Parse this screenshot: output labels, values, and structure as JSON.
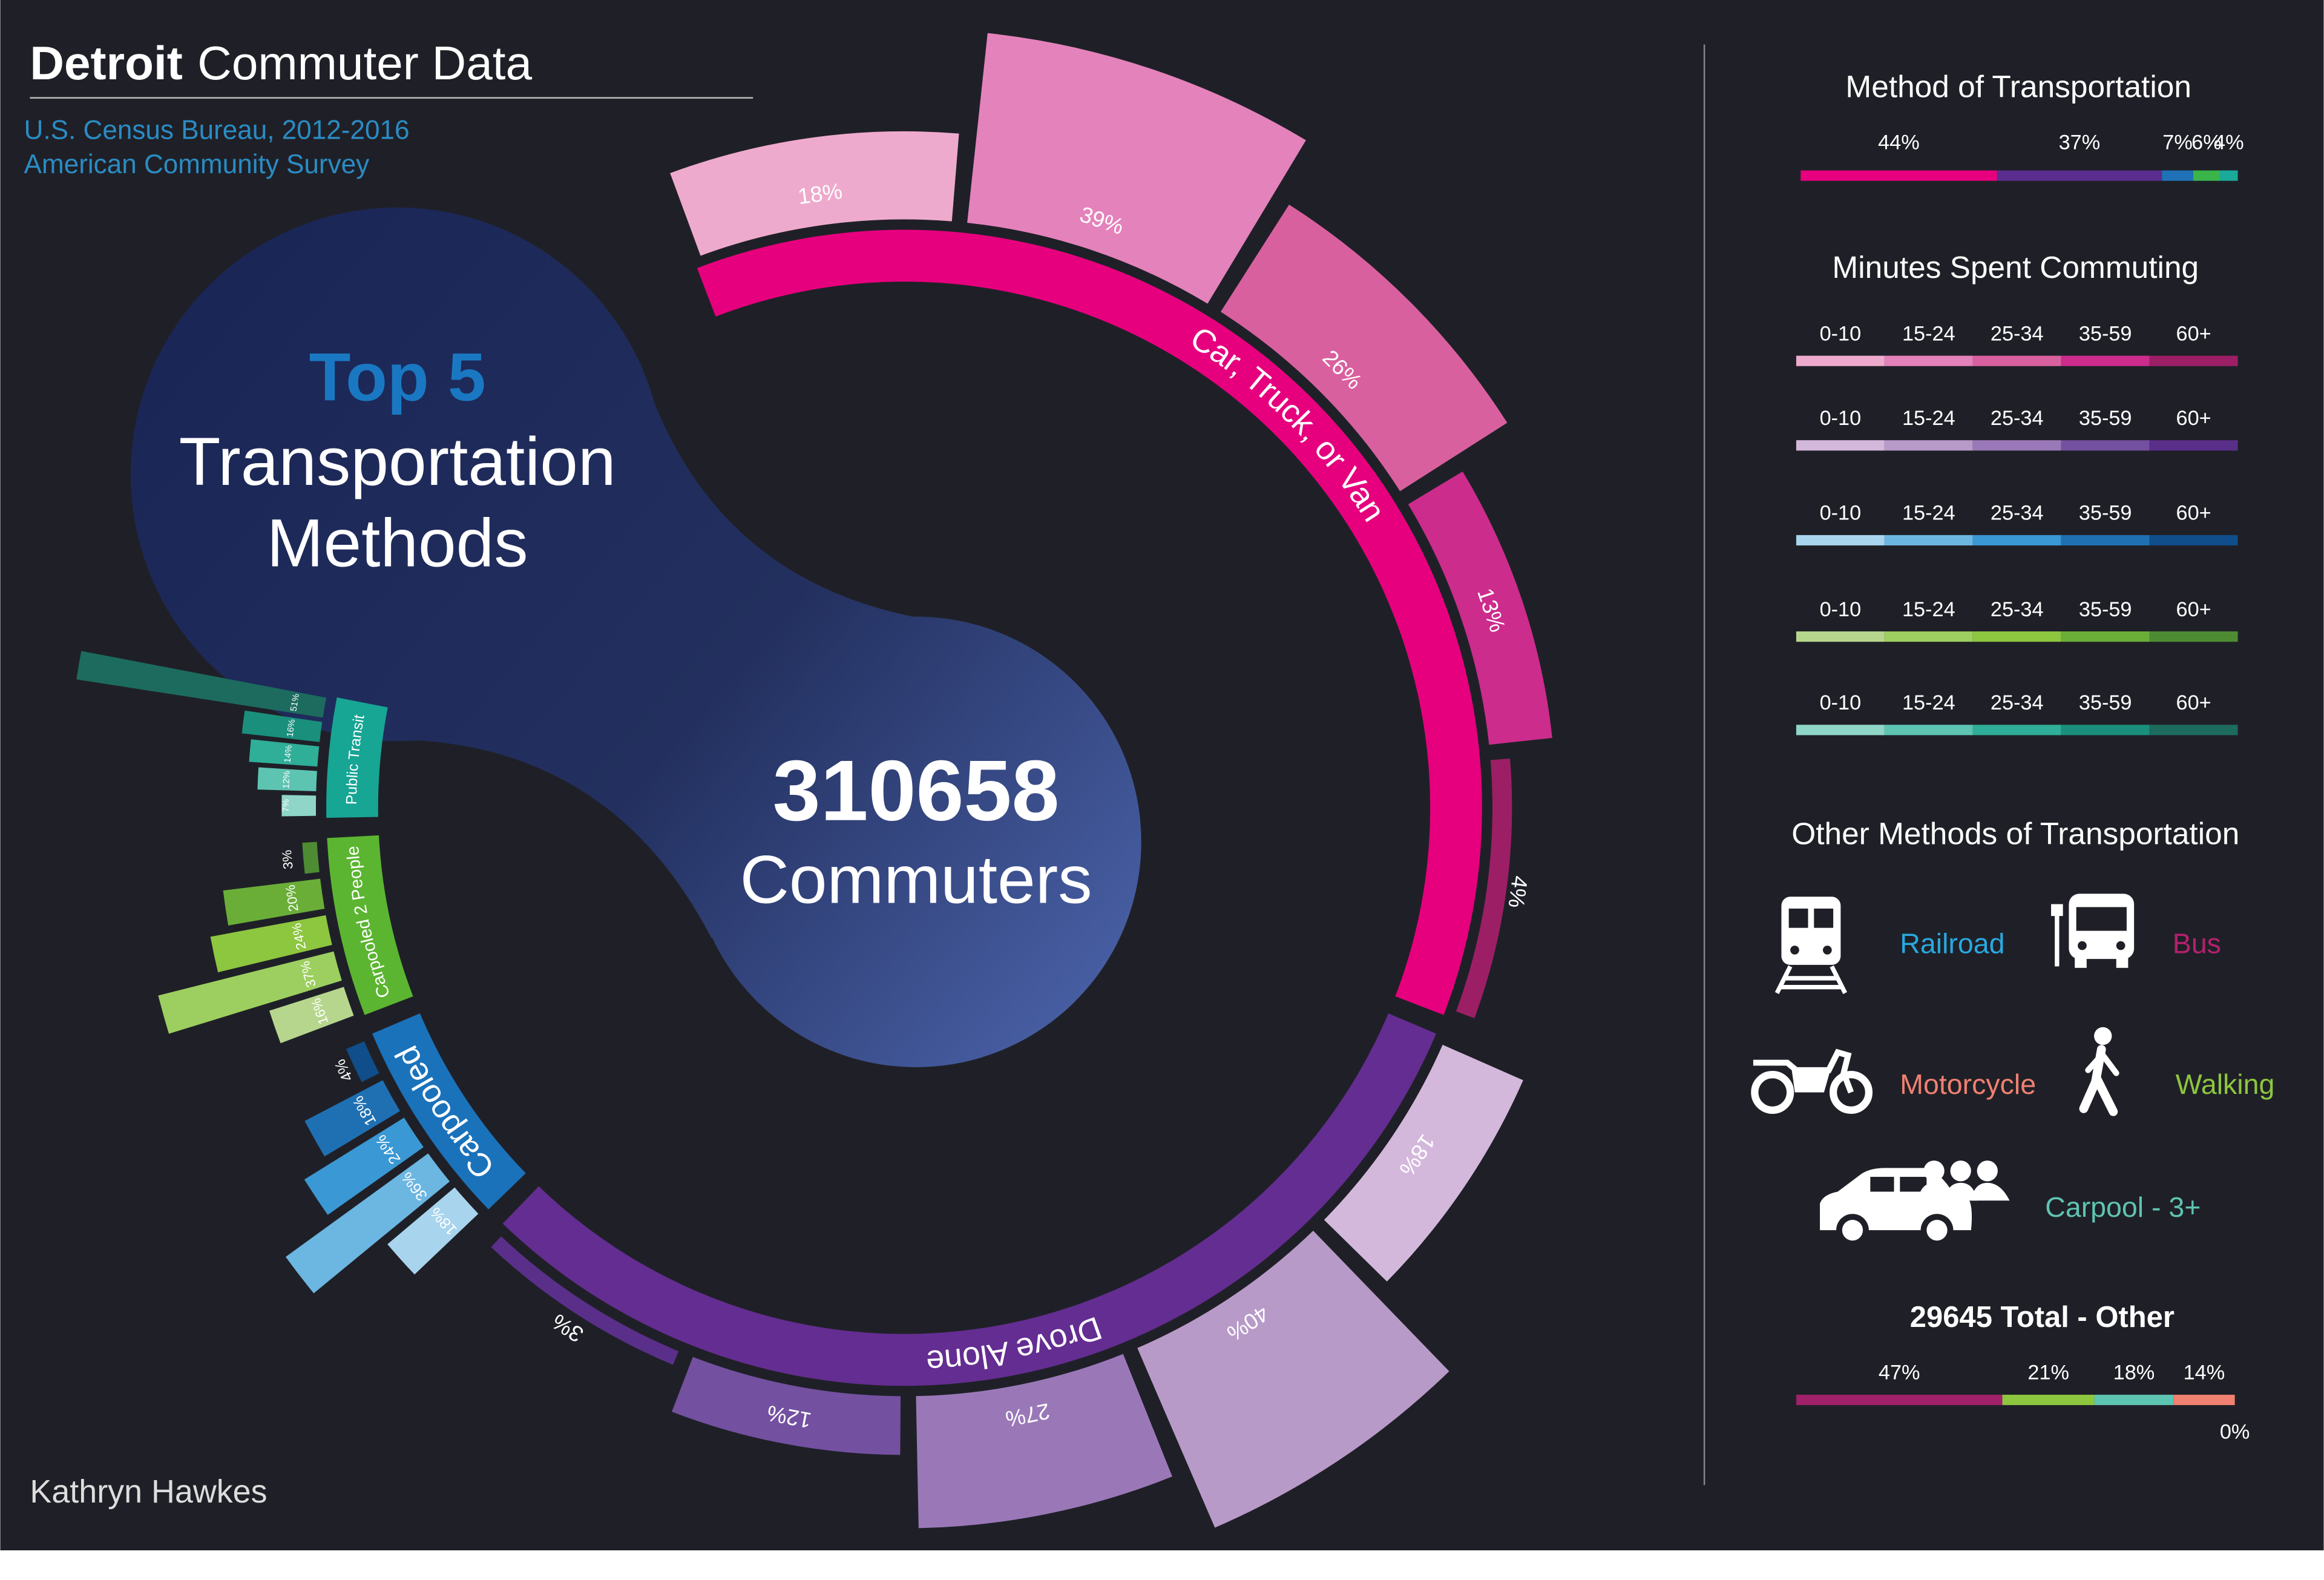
{
  "header": {
    "title_bold": "Detroit",
    "title_rest": "Commuter Data",
    "source_lines": [
      "U.S. Census Bureau, 2012-2016",
      "American Community Survey"
    ]
  },
  "center": {
    "heading": "Top 5",
    "lines": [
      "Transportation",
      "Methods"
    ],
    "total": 310658,
    "total_label": "Commuters"
  },
  "author": "Kathryn Hawkes",
  "minutes_legend": {
    "title": "Minutes Spent Commuting",
    "categories": [
      "0-10",
      "15-24",
      "25-34",
      "35-59",
      "60+"
    ],
    "palettes": [
      [
        "#eeaacc",
        "#e482bb",
        "#d9609f",
        "#cc2c8c",
        "#9c1f66"
      ],
      [
        "#d4b8dc",
        "#b89ac8",
        "#9a78b8",
        "#7350a0",
        "#5a2f8a"
      ],
      [
        "#a8d4ee",
        "#6cb6e2",
        "#3a98d4",
        "#1f70b3",
        "#0f4e8a"
      ],
      [
        "#b7d68d",
        "#9ccf5f",
        "#8dc63f",
        "#6aae38",
        "#4d8c33"
      ],
      [
        "#8fd6c8",
        "#5ec4b2",
        "#2fae98",
        "#1a8f7c",
        "#1c6b5e"
      ]
    ]
  },
  "other_methods": {
    "title": "Other Methods of Transportation",
    "items": [
      {
        "label": "Railroad",
        "color": "#29a8e0"
      },
      {
        "label": "Bus",
        "color": "#b5206e"
      },
      {
        "label": "Motorcycle",
        "color": "#f08070"
      },
      {
        "label": "Walking",
        "color": "#8dc63f"
      },
      {
        "label": "Carpool - 3+",
        "color": "#5ec4b2"
      }
    ]
  },
  "chart_data": [
    {
      "type": "radial-bar",
      "series": [
        {
          "name": "Car, Truck, or Van",
          "color": "#e6007e",
          "values": [
            18,
            39,
            26,
            13,
            4
          ],
          "value_labels": [
            "18%",
            "39%",
            "26%",
            "13%",
            "4%"
          ]
        },
        {
          "name": "Drove Alone",
          "color": "#642d91",
          "values": [
            18,
            40,
            27,
            12,
            3
          ],
          "value_labels": [
            "18%",
            "40%",
            "27%",
            "12%",
            "3%"
          ]
        },
        {
          "name": "Carpooled",
          "color": "#1a72bb",
          "values": [
            18,
            36,
            24,
            18,
            4
          ],
          "value_labels": [
            "18%",
            "36%",
            "24%",
            "18%",
            "4%"
          ]
        },
        {
          "name": "Carpooled 2 People",
          "color": "#5cb531",
          "values": [
            16,
            37,
            24,
            20,
            3
          ],
          "value_labels": [
            "16%",
            "37%",
            "24%",
            "20%",
            "3%"
          ]
        },
        {
          "name": "Public Transit",
          "color": "#17a594",
          "values": [
            7,
            12,
            14,
            16,
            51
          ],
          "value_labels": [
            "7%",
            "12%",
            "14%",
            "16%",
            "51%"
          ]
        }
      ]
    },
    {
      "type": "stacked-bar",
      "title": "Method of Transportation",
      "values": [
        44,
        37,
        7,
        6,
        4
      ],
      "value_labels": [
        "44%",
        "37%",
        "7%",
        "6%",
        "4%"
      ],
      "colors": [
        "#e6007e",
        "#5b2d8e",
        "#1f72b8",
        "#3ab54a",
        "#1aaa9a"
      ]
    },
    {
      "type": "stacked-bar",
      "title": "29645 Total - Other",
      "values": [
        47,
        21,
        18,
        14,
        0
      ],
      "value_labels": [
        "47%",
        "21%",
        "18%",
        "14%",
        "0%"
      ],
      "colors": [
        "#a0206a",
        "#8dc63f",
        "#5ec4b2",
        "#f08070",
        "#29a8e0"
      ]
    }
  ]
}
